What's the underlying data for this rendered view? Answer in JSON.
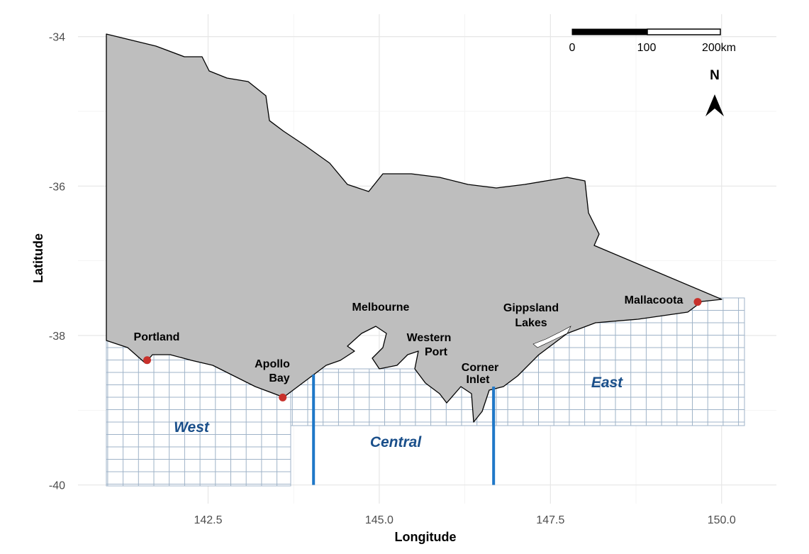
{
  "map": {
    "x_axis_label": "Longitude",
    "y_axis_label": "Latitude",
    "xlim": [
      140.6,
      150.8
    ],
    "ylim": [
      -40.25,
      -33.7
    ],
    "xticks": [
      {
        "value": 142.5,
        "label": "142.5"
      },
      {
        "value": 145,
        "label": "145.0"
      },
      {
        "value": 147.5,
        "label": "147.5"
      },
      {
        "value": 150,
        "label": "150.0"
      }
    ],
    "yticks": [
      -34,
      -36,
      -38,
      -40
    ],
    "point_color": "#c8312b",
    "places": [
      {
        "lines": [
          "Portland"
        ],
        "lon": 141.61,
        "lat": -38.33
      },
      {
        "lines": [
          "Apollo",
          "Bay"
        ],
        "lon": 143.59,
        "lat": -38.83
      },
      {
        "lines": [
          "Mallacoota"
        ],
        "lon": 149.65,
        "lat": -37.55
      },
      {
        "lines": [
          "Melbourne"
        ]
      },
      {
        "lines": [
          "Western",
          "Port"
        ]
      },
      {
        "lines": [
          "Gippsland",
          "Lakes"
        ]
      },
      {
        "lines": [
          "Corner",
          "Inlet"
        ]
      }
    ],
    "regions": [
      "West",
      "Central",
      "East"
    ],
    "zone_boundaries": [
      144.04,
      146.67
    ],
    "boundary_color": "#1f78c8",
    "scale_bar": {
      "labels": [
        "0",
        "100",
        "200km"
      ]
    },
    "north_label": "N"
  }
}
